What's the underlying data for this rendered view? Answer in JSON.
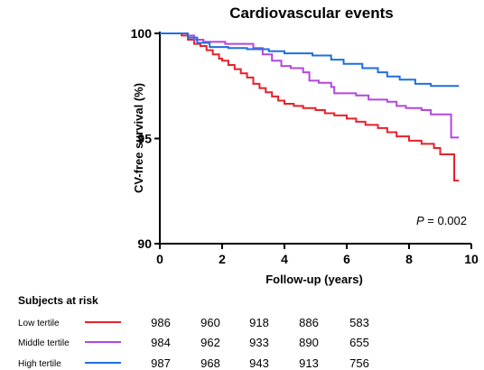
{
  "chart_data": {
    "type": "line",
    "title": "Cardiovascular events",
    "xlabel": "Follow-up (years)",
    "ylabel": "CV-free survival (%)",
    "xlim": [
      0,
      10
    ],
    "ylim": [
      90,
      100
    ],
    "x_ticks": [
      "0",
      "2",
      "4",
      "6",
      "8",
      "10"
    ],
    "y_ticks": [
      "90",
      "95",
      "100"
    ],
    "step_curve": true,
    "annotation": {
      "p_symbol": "P",
      "p_text": " = 0.002"
    },
    "series": [
      {
        "name": "Low tertile",
        "color": "#e8202a",
        "points": [
          [
            0,
            100
          ],
          [
            0.7,
            99.9
          ],
          [
            0.9,
            99.7
          ],
          [
            1.1,
            99.5
          ],
          [
            1.3,
            99.4
          ],
          [
            1.5,
            99.2
          ],
          [
            1.7,
            99.0
          ],
          [
            1.9,
            98.8
          ],
          [
            2.0,
            98.7
          ],
          [
            2.2,
            98.5
          ],
          [
            2.4,
            98.3
          ],
          [
            2.6,
            98.1
          ],
          [
            2.8,
            97.9
          ],
          [
            3.0,
            97.6
          ],
          [
            3.2,
            97.4
          ],
          [
            3.4,
            97.2
          ],
          [
            3.6,
            97.0
          ],
          [
            3.8,
            96.8
          ],
          [
            4.0,
            96.65
          ],
          [
            4.3,
            96.55
          ],
          [
            4.6,
            96.45
          ],
          [
            5.0,
            96.35
          ],
          [
            5.3,
            96.2
          ],
          [
            5.6,
            96.1
          ],
          [
            6.0,
            95.95
          ],
          [
            6.3,
            95.8
          ],
          [
            6.6,
            95.65
          ],
          [
            7.0,
            95.5
          ],
          [
            7.3,
            95.3
          ],
          [
            7.6,
            95.1
          ],
          [
            8.0,
            94.9
          ],
          [
            8.4,
            94.75
          ],
          [
            8.8,
            94.55
          ],
          [
            9.0,
            94.25
          ],
          [
            9.4,
            94.25
          ],
          [
            9.45,
            93.0
          ],
          [
            9.6,
            93.0
          ]
        ]
      },
      {
        "name": "Middle tertile",
        "color": "#b545e0",
        "points": [
          [
            0,
            100
          ],
          [
            0.9,
            99.9
          ],
          [
            1.1,
            99.7
          ],
          [
            1.4,
            99.6
          ],
          [
            2.1,
            99.5
          ],
          [
            2.6,
            99.5
          ],
          [
            3.0,
            99.3
          ],
          [
            3.3,
            99.0
          ],
          [
            3.6,
            98.7
          ],
          [
            3.9,
            98.45
          ],
          [
            4.2,
            98.35
          ],
          [
            4.6,
            98.15
          ],
          [
            4.8,
            97.75
          ],
          [
            5.1,
            97.65
          ],
          [
            5.5,
            97.45
          ],
          [
            5.6,
            97.15
          ],
          [
            6.3,
            97.05
          ],
          [
            6.7,
            96.85
          ],
          [
            7.3,
            96.75
          ],
          [
            7.6,
            96.55
          ],
          [
            7.9,
            96.45
          ],
          [
            8.4,
            96.35
          ],
          [
            8.7,
            96.15
          ],
          [
            9.3,
            96.15
          ],
          [
            9.35,
            95.05
          ],
          [
            9.6,
            95.05
          ]
        ]
      },
      {
        "name": "High tertile",
        "color": "#1f6fe0",
        "points": [
          [
            0,
            100
          ],
          [
            0.9,
            99.8
          ],
          [
            1.2,
            99.55
          ],
          [
            1.6,
            99.35
          ],
          [
            2.2,
            99.3
          ],
          [
            2.8,
            99.25
          ],
          [
            3.5,
            99.15
          ],
          [
            4.0,
            99.05
          ],
          [
            4.9,
            98.95
          ],
          [
            5.5,
            98.75
          ],
          [
            5.9,
            98.55
          ],
          [
            6.5,
            98.35
          ],
          [
            7.0,
            98.15
          ],
          [
            7.3,
            97.95
          ],
          [
            7.7,
            97.8
          ],
          [
            8.2,
            97.6
          ],
          [
            8.7,
            97.5
          ],
          [
            9.6,
            97.5
          ]
        ]
      }
    ]
  },
  "risk_table": {
    "header": "Subjects at risk",
    "rows": [
      {
        "label": "Low tertile",
        "counts": [
          "986",
          "960",
          "918",
          "886",
          "583"
        ]
      },
      {
        "label": "Middle tertile",
        "counts": [
          "984",
          "962",
          "933",
          "890",
          "655"
        ]
      },
      {
        "label": "High tertile",
        "counts": [
          "987",
          "968",
          "943",
          "913",
          "756"
        ]
      }
    ]
  }
}
